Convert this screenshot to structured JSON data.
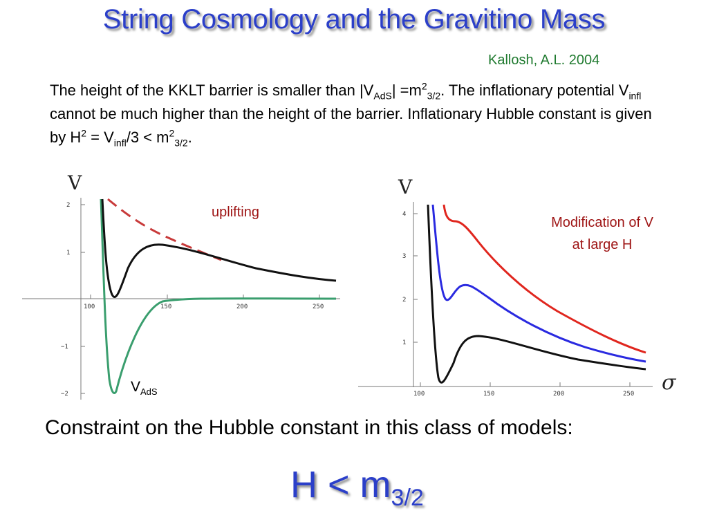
{
  "title": "String Cosmology and the Gravitino Mass",
  "author": "Kallosh, A.L. 2004",
  "paragraph": {
    "s1": "The height of the KKLT barrier is smaller than |V",
    "s1_sub": "AdS",
    "s2": "| =m",
    "s2_sup": "2",
    "s2_sub": "3/2",
    "s3": ". The inflationary potential V",
    "s3_sub": "infl",
    "s4": " cannot be much higher than the height of the barrier. Inflationary Hubble constant is given by H",
    "s4_sup": "2",
    "s5": " = V",
    "s5_sub": "infl",
    "s6": "/3 < m",
    "s6_sup": "2",
    "s6_sub": "3/2",
    "s7": "."
  },
  "left_plot": {
    "axis_label": "V",
    "x_ticks": [
      "100",
      "150",
      "200",
      "250"
    ],
    "y_ticks": [
      "2",
      "1",
      "−1",
      "−2"
    ],
    "annotation_uplifting": "uplifting",
    "annotation_vads": "V",
    "annotation_vads_sub": "AdS"
  },
  "right_plot": {
    "axis_label": "V",
    "x_axis_label": "σ",
    "x_ticks": [
      "100",
      "150",
      "200",
      "250"
    ],
    "y_ticks": [
      "4",
      "3",
      "2",
      "1"
    ],
    "annotation_line1": "Modification of  V",
    "annotation_line2": "at large H"
  },
  "constraint": "Constraint on the Hubble constant in this class of models:",
  "result": {
    "main": "H < m",
    "sub": "3/2"
  },
  "colors": {
    "title": "#2b3fc9",
    "author": "#1f7a2f",
    "annotation": "#9e1414",
    "curve_black": "#111111",
    "curve_green": "#3a9e6e",
    "curve_red_dashed": "#c83a3a",
    "curve_red": "#e0261e",
    "curve_blue": "#2a2ae0"
  }
}
